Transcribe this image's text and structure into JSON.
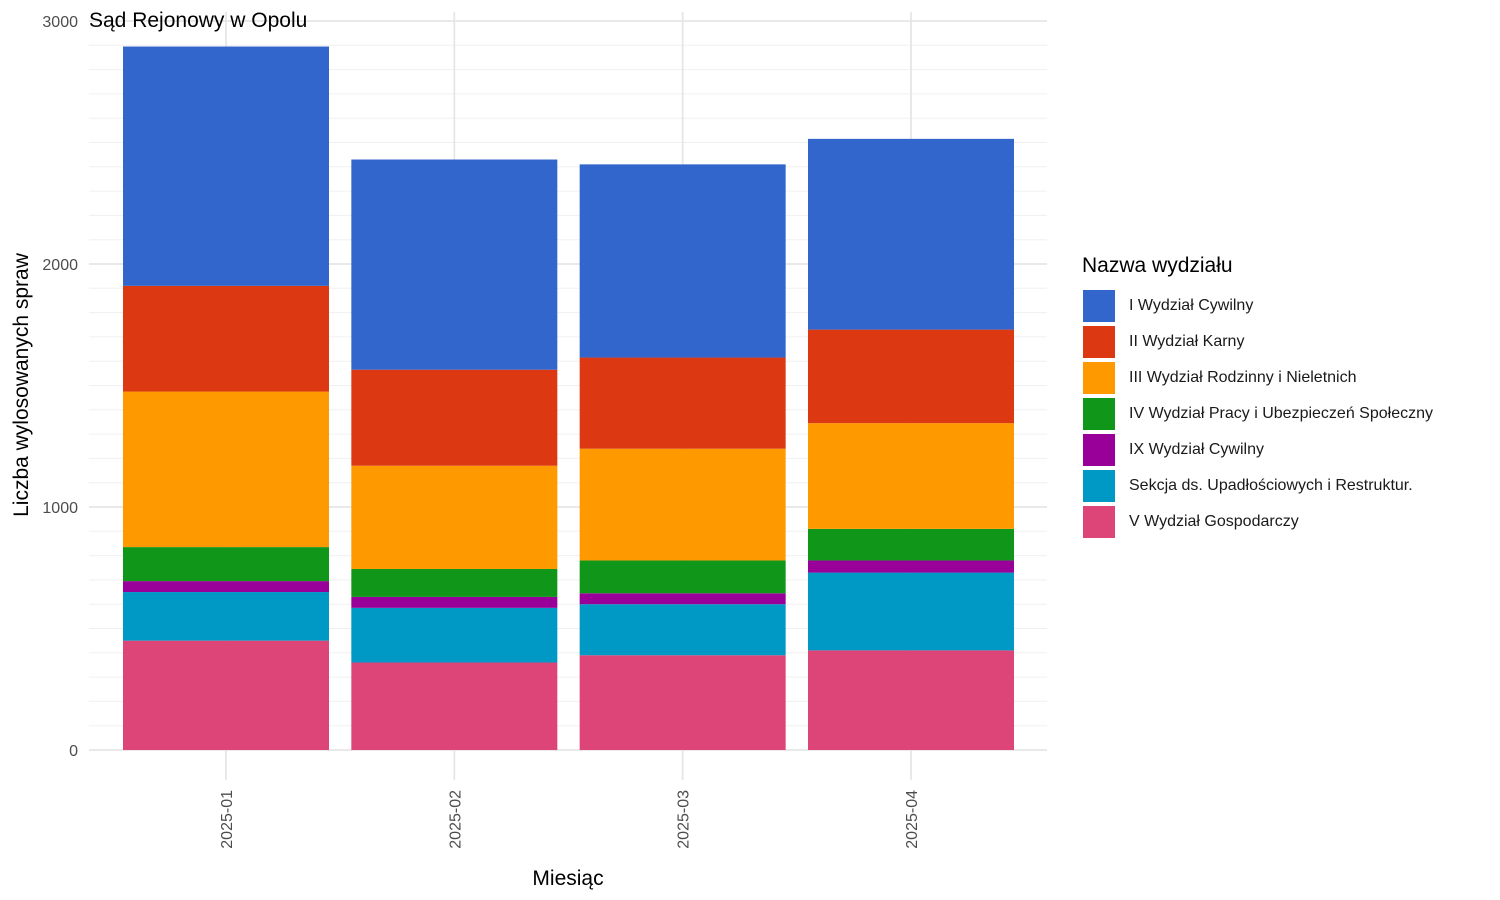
{
  "chart_data": {
    "type": "bar",
    "stacked": true,
    "title": "Sąd Rejonowy w Opolu",
    "xlabel": "Miesiąc",
    "ylabel": "Liczba wylosowanych spraw",
    "ylim": [
      0,
      3000
    ],
    "yticks": [
      "0",
      "1000",
      "2000",
      "3000"
    ],
    "categories": [
      "2025-01",
      "2025-02",
      "2025-03",
      "2025-04"
    ],
    "grid": true,
    "legend": {
      "title": "Nazwa wydziału",
      "position": "right"
    },
    "series": [
      {
        "name": "V Wydział Gospodarczy",
        "color": "#dd4477",
        "values": [
          450,
          360,
          390,
          410
        ]
      },
      {
        "name": "Sekcja ds. Upadłościowych i Restruktur.",
        "color": "#0099c6",
        "values": [
          200,
          225,
          210,
          320
        ]
      },
      {
        "name": "IX Wydział Cywilny",
        "color": "#990099",
        "values": [
          45,
          45,
          45,
          50
        ]
      },
      {
        "name": "IV Wydział Pracy i Ubezpieczeń Społeczny",
        "color": "#109618",
        "values": [
          140,
          115,
          135,
          130
        ]
      },
      {
        "name": "III Wydział Rodzinny i Nieletnich",
        "color": "#ff9900",
        "values": [
          640,
          425,
          460,
          435
        ]
      },
      {
        "name": "II Wydział Karny",
        "color": "#dc3912",
        "values": [
          435,
          395,
          375,
          385
        ]
      },
      {
        "name": "I Wydział Cywilny",
        "color": "#3366cc",
        "values": [
          985,
          865,
          795,
          785
        ]
      }
    ]
  }
}
